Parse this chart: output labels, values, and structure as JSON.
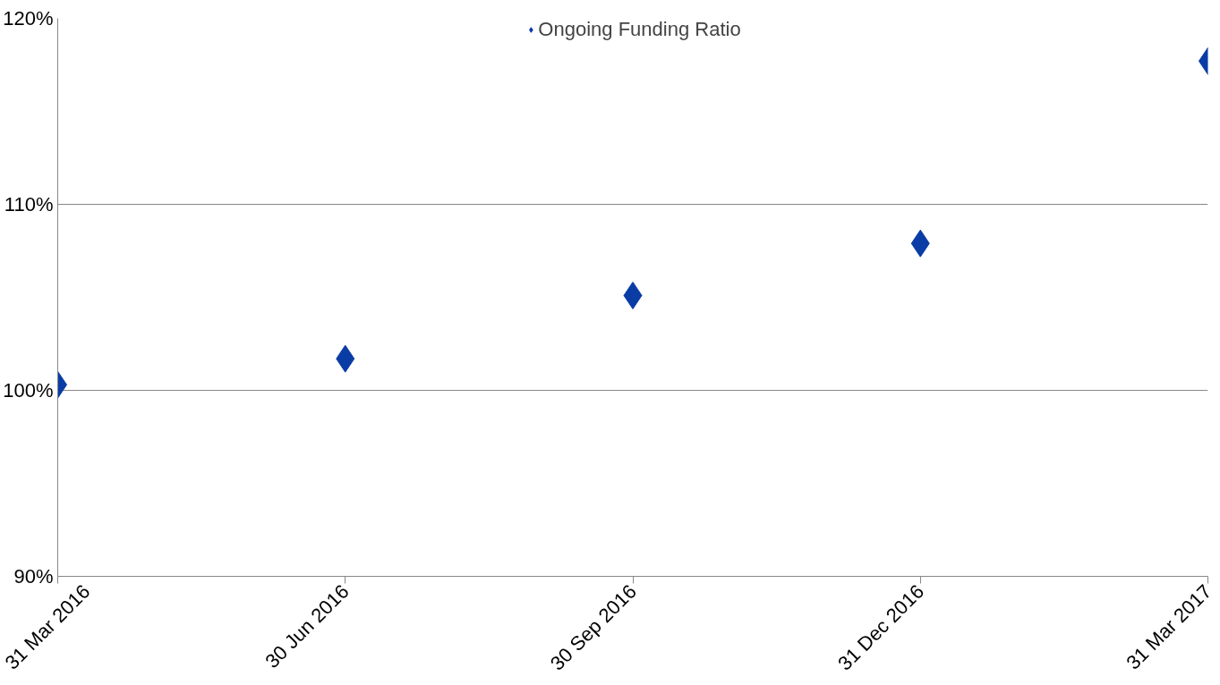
{
  "chart_data": {
    "type": "scatter",
    "categories": [
      "31 Mar 2016",
      "30 Jun 2016",
      "30 Sep 2016",
      "31 Dec 2016",
      "31 Mar 2017"
    ],
    "series": [
      {
        "name": "Ongoing Funding Ratio",
        "color": "#0a3ca5",
        "values": [
          100.3,
          101.7,
          105.1,
          107.9,
          117.7
        ]
      }
    ],
    "ylim": [
      90,
      120
    ],
    "yticks": [
      {
        "value": 90,
        "label": "90%"
      },
      {
        "value": 100,
        "label": "100%"
      },
      {
        "value": 110,
        "label": "110%"
      },
      {
        "value": 120,
        "label": "120%"
      }
    ],
    "grid": "y",
    "legend": "top",
    "marker": "diamond"
  }
}
